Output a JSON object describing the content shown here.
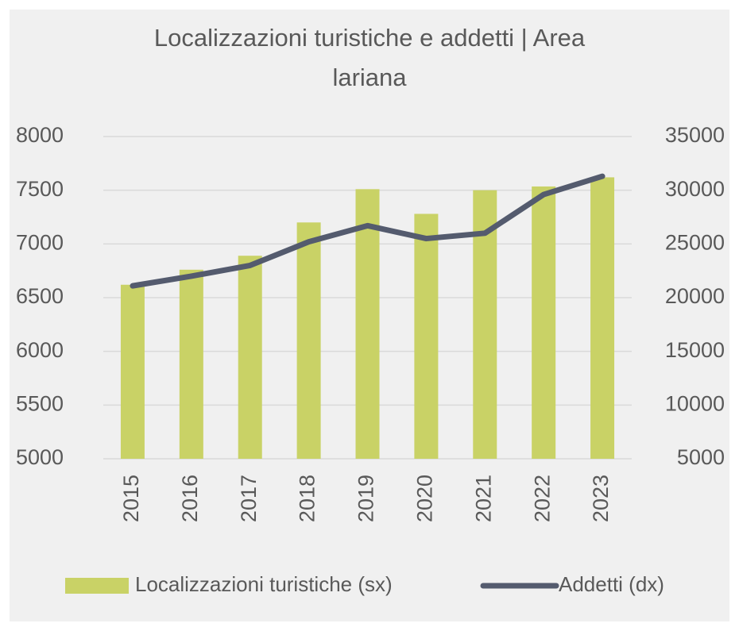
{
  "chart_data": {
    "type": "bar_line",
    "title": [
      "Localizzazioni turistiche e addetti | Area",
      "lariana"
    ],
    "categories": [
      "2015",
      "2016",
      "2017",
      "2018",
      "2019",
      "2020",
      "2021",
      "2022",
      "2023"
    ],
    "series": [
      {
        "name": "Localizzazioni turistiche (sx)",
        "type": "bar",
        "color": "#c9d266",
        "axis": "y",
        "values": [
          6620,
          6760,
          6890,
          7200,
          7510,
          7280,
          7500,
          7535,
          7620
        ]
      },
      {
        "name": "Addetti (dx)",
        "type": "line",
        "color": "#545b6e",
        "axis": "y2",
        "values": [
          21100,
          22000,
          23000,
          25200,
          26700,
          25500,
          26000,
          29600,
          31300
        ]
      }
    ],
    "ylim": [
      5000,
      8000
    ],
    "yticks": [
      5000,
      5500,
      6000,
      6500,
      7000,
      7500,
      8000
    ],
    "y2lim": [
      5000,
      35000
    ],
    "y2ticks": [
      5000,
      10000,
      15000,
      20000,
      25000,
      30000,
      35000
    ],
    "grid": true,
    "legend": "bottom"
  }
}
